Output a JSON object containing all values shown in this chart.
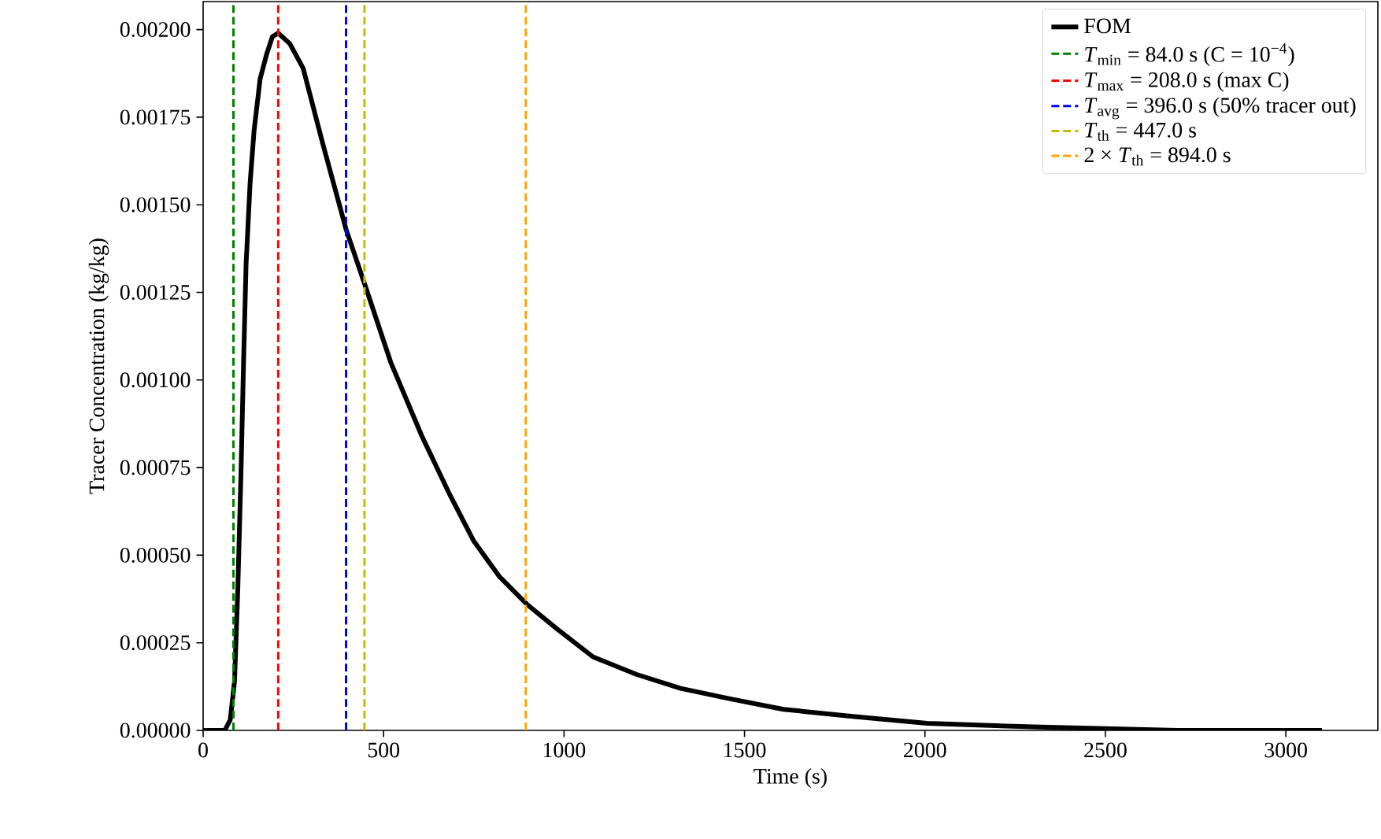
{
  "chart_data": {
    "type": "line",
    "xlabel": "Time (s)",
    "ylabel": "Tracer Concentration (kg/kg)",
    "xlim": [
      0,
      3255
    ],
    "ylim": [
      0,
      0.00208
    ],
    "xticks": [
      0,
      500,
      1000,
      1500,
      2000,
      2500,
      3000
    ],
    "yticks": [
      {
        "value": 0,
        "label": "0.00000"
      },
      {
        "value": 0.00025,
        "label": "0.00025"
      },
      {
        "value": 0.0005,
        "label": "0.00050"
      },
      {
        "value": 0.00075,
        "label": "0.00075"
      },
      {
        "value": 0.001,
        "label": "0.00100"
      },
      {
        "value": 0.00125,
        "label": "0.00125"
      },
      {
        "value": 0.0015,
        "label": "0.00150"
      },
      {
        "value": 0.00175,
        "label": "0.00175"
      },
      {
        "value": 0.002,
        "label": "0.00200"
      }
    ],
    "legend": "top right",
    "line_style": "solid",
    "series": [
      {
        "name": "FOM",
        "color": "#000000",
        "x": [
          0,
          60,
          75,
          87,
          96,
          105,
          112,
          119,
          130,
          141,
          158,
          176,
          192,
          208,
          240,
          277,
          330,
          396,
          452,
          520,
          606,
          680,
          750,
          820,
          897,
          980,
          1080,
          1200,
          1323,
          1460,
          1608,
          1800,
          2006,
          2300,
          2700,
          3100
        ],
        "values": [
          0,
          0,
          3e-05,
          0.00014,
          0.0004,
          0.00074,
          0.00105,
          0.00133,
          0.00156,
          0.00171,
          0.00186,
          0.00193,
          0.00198,
          0.00199,
          0.00196,
          0.00189,
          0.00168,
          0.00143,
          0.00126,
          0.00105,
          0.00084,
          0.00068,
          0.00054,
          0.00044,
          0.00036,
          0.00029,
          0.00021,
          0.00016,
          0.00012,
          9e-05,
          6e-05,
          4e-05,
          2e-05,
          1e-05,
          0,
          0
        ]
      },
      {
        "name": "*T*$_{min}$ = 84.0 s (C = 10$^{−4}$)",
        "color": "#008000",
        "line_style": "dashed",
        "x": [
          84,
          84
        ],
        "values": [
          0,
          0.00208
        ]
      },
      {
        "name": "*T*$_{max}$ = 208.0 s (max C)",
        "color": "#ff0000",
        "line_style": "dashed",
        "x": [
          208,
          208
        ],
        "values": [
          0,
          0.00208
        ]
      },
      {
        "name": "*T*$_{avg}$ = 396.0 s (50% tracer out)",
        "color": "#0000ff",
        "line_style": "dashed",
        "x": [
          396,
          396
        ],
        "values": [
          0,
          0.00208
        ]
      },
      {
        "name": "*T*$_{th}$ = 447.0 s",
        "color": "#bfbf00",
        "line_style": "dashed",
        "x": [
          447,
          447
        ],
        "values": [
          0,
          0.00208
        ]
      },
      {
        "name": "2 × *T*$_{th}$ = 894.0 s",
        "color": "#ffa500",
        "line_style": "dashed",
        "x": [
          894,
          894
        ],
        "values": [
          0,
          0.00208
        ]
      }
    ]
  }
}
